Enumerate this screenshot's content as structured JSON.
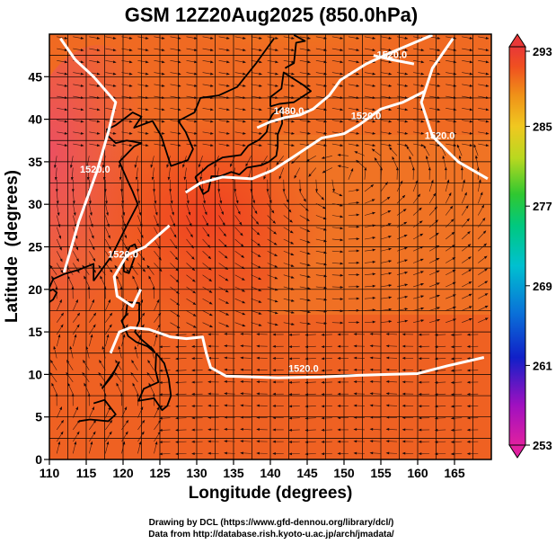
{
  "title": "GSM 12Z20Aug2025 (850.0hPa)",
  "credits": [
    "Drawing by DCL (https://www.gfd-dennou.org/library/dcl/)",
    "Data from http://database.rish.kyoto-u.ac.jp/arch/jmadata/"
  ],
  "chart_data": {
    "type": "heatmap",
    "xlabel": "Longitude (degrees)",
    "ylabel": "Latitude  (degrees)",
    "xlim": [
      110,
      170
    ],
    "ylim": [
      0,
      50
    ],
    "xticks": [
      110,
      115,
      120,
      125,
      130,
      135,
      140,
      145,
      150,
      155,
      160,
      165
    ],
    "yticks": [
      0,
      5,
      10,
      15,
      20,
      25,
      30,
      35,
      40,
      45
    ],
    "grid": true,
    "colorbar": {
      "min": 253,
      "max": 293,
      "ticks": [
        293,
        285,
        277,
        269,
        261,
        253
      ],
      "colors": [
        "#e0208a",
        "#9a10b8",
        "#1020c8",
        "#0a78d8",
        "#00b8d8",
        "#00c890",
        "#30c830",
        "#b8d820",
        "#f0d020",
        "#f09818",
        "#f05820",
        "#e83838"
      ]
    },
    "contours": [
      {
        "label": "1520.0",
        "points": [
          [
            118.3,
            12.5
          ],
          [
            119.5,
            15.0
          ],
          [
            121.0,
            15.5
          ],
          [
            123.5,
            15.3
          ],
          [
            126.5,
            14.4
          ],
          [
            128.6,
            14.2
          ],
          [
            130.8,
            14.4
          ],
          [
            131.3,
            12.5
          ],
          [
            131.9,
            10.8
          ],
          [
            134.0,
            9.8
          ],
          [
            141.0,
            9.6
          ],
          [
            147.0,
            9.7
          ],
          [
            152.0,
            9.9
          ],
          [
            156.0,
            10.0
          ],
          [
            160.0,
            10.1
          ],
          [
            164.0,
            11.0
          ],
          [
            169.0,
            12.0
          ]
        ],
        "label_at": [
          144.5,
          10.1
        ]
      },
      {
        "label": "1520.0",
        "points": [
          [
            126.3,
            27.5
          ],
          [
            123.0,
            25.0
          ],
          [
            120.5,
            24.0
          ],
          [
            118.8,
            21.5
          ],
          [
            119.2,
            19.2
          ],
          [
            121.3,
            18.0
          ],
          [
            122.4,
            20.0
          ]
        ],
        "label_at": [
          120.0,
          23.5
        ]
      },
      {
        "label": "1520.0",
        "points": [
          [
            112.0,
            22.0
          ],
          [
            114.0,
            28.0
          ],
          [
            116.5,
            34.0
          ],
          [
            118.0,
            38.5
          ],
          [
            119.0,
            42.0
          ],
          [
            116.0,
            45.0
          ],
          [
            113.5,
            47.0
          ],
          [
            111.5,
            49.5
          ]
        ],
        "label_at": [
          116.2,
          33.5
        ]
      },
      {
        "label": "1520.0",
        "points": [
          [
            128.5,
            31.4
          ],
          [
            130.5,
            32.5
          ],
          [
            133.5,
            33.2
          ],
          [
            137.5,
            33.0
          ],
          [
            140.3,
            34.0
          ],
          [
            143.0,
            35.5
          ],
          [
            147.0,
            37.8
          ],
          [
            150.0,
            38.3
          ],
          [
            152.0,
            39.3
          ],
          [
            155.0,
            41.2
          ],
          [
            158.0,
            42.0
          ],
          [
            161.0,
            43.3
          ]
        ],
        "label_at": [
          153.0,
          39.8
        ]
      },
      {
        "label": "1480.0",
        "points": [
          [
            138.2,
            39.0
          ],
          [
            140.0,
            39.7
          ],
          [
            142.0,
            40.2
          ],
          [
            144.0,
            40.5
          ],
          [
            145.8,
            41.2
          ],
          [
            148.0,
            42.8
          ],
          [
            149.5,
            44.6
          ],
          [
            153.0,
            46.5
          ],
          [
            156.0,
            47.7
          ],
          [
            159.0,
            48.8
          ],
          [
            162.0,
            49.9
          ]
        ],
        "label_at": [
          142.5,
          40.4
        ]
      },
      {
        "label": "1520.0",
        "points": [
          [
            164.8,
            49.5
          ],
          [
            162.0,
            46.0
          ],
          [
            160.5,
            42.0
          ],
          [
            162.0,
            38.0
          ],
          [
            165.5,
            35.0
          ],
          [
            169.5,
            33.0
          ]
        ],
        "label_at": [
          163.0,
          37.5
        ]
      },
      {
        "label": "1520.0",
        "points": [
          [
            154.0,
            47.5
          ],
          [
            156.5,
            47.0
          ],
          [
            159.5,
            46.5
          ]
        ],
        "label_at": [
          156.5,
          47.0
        ]
      }
    ]
  }
}
